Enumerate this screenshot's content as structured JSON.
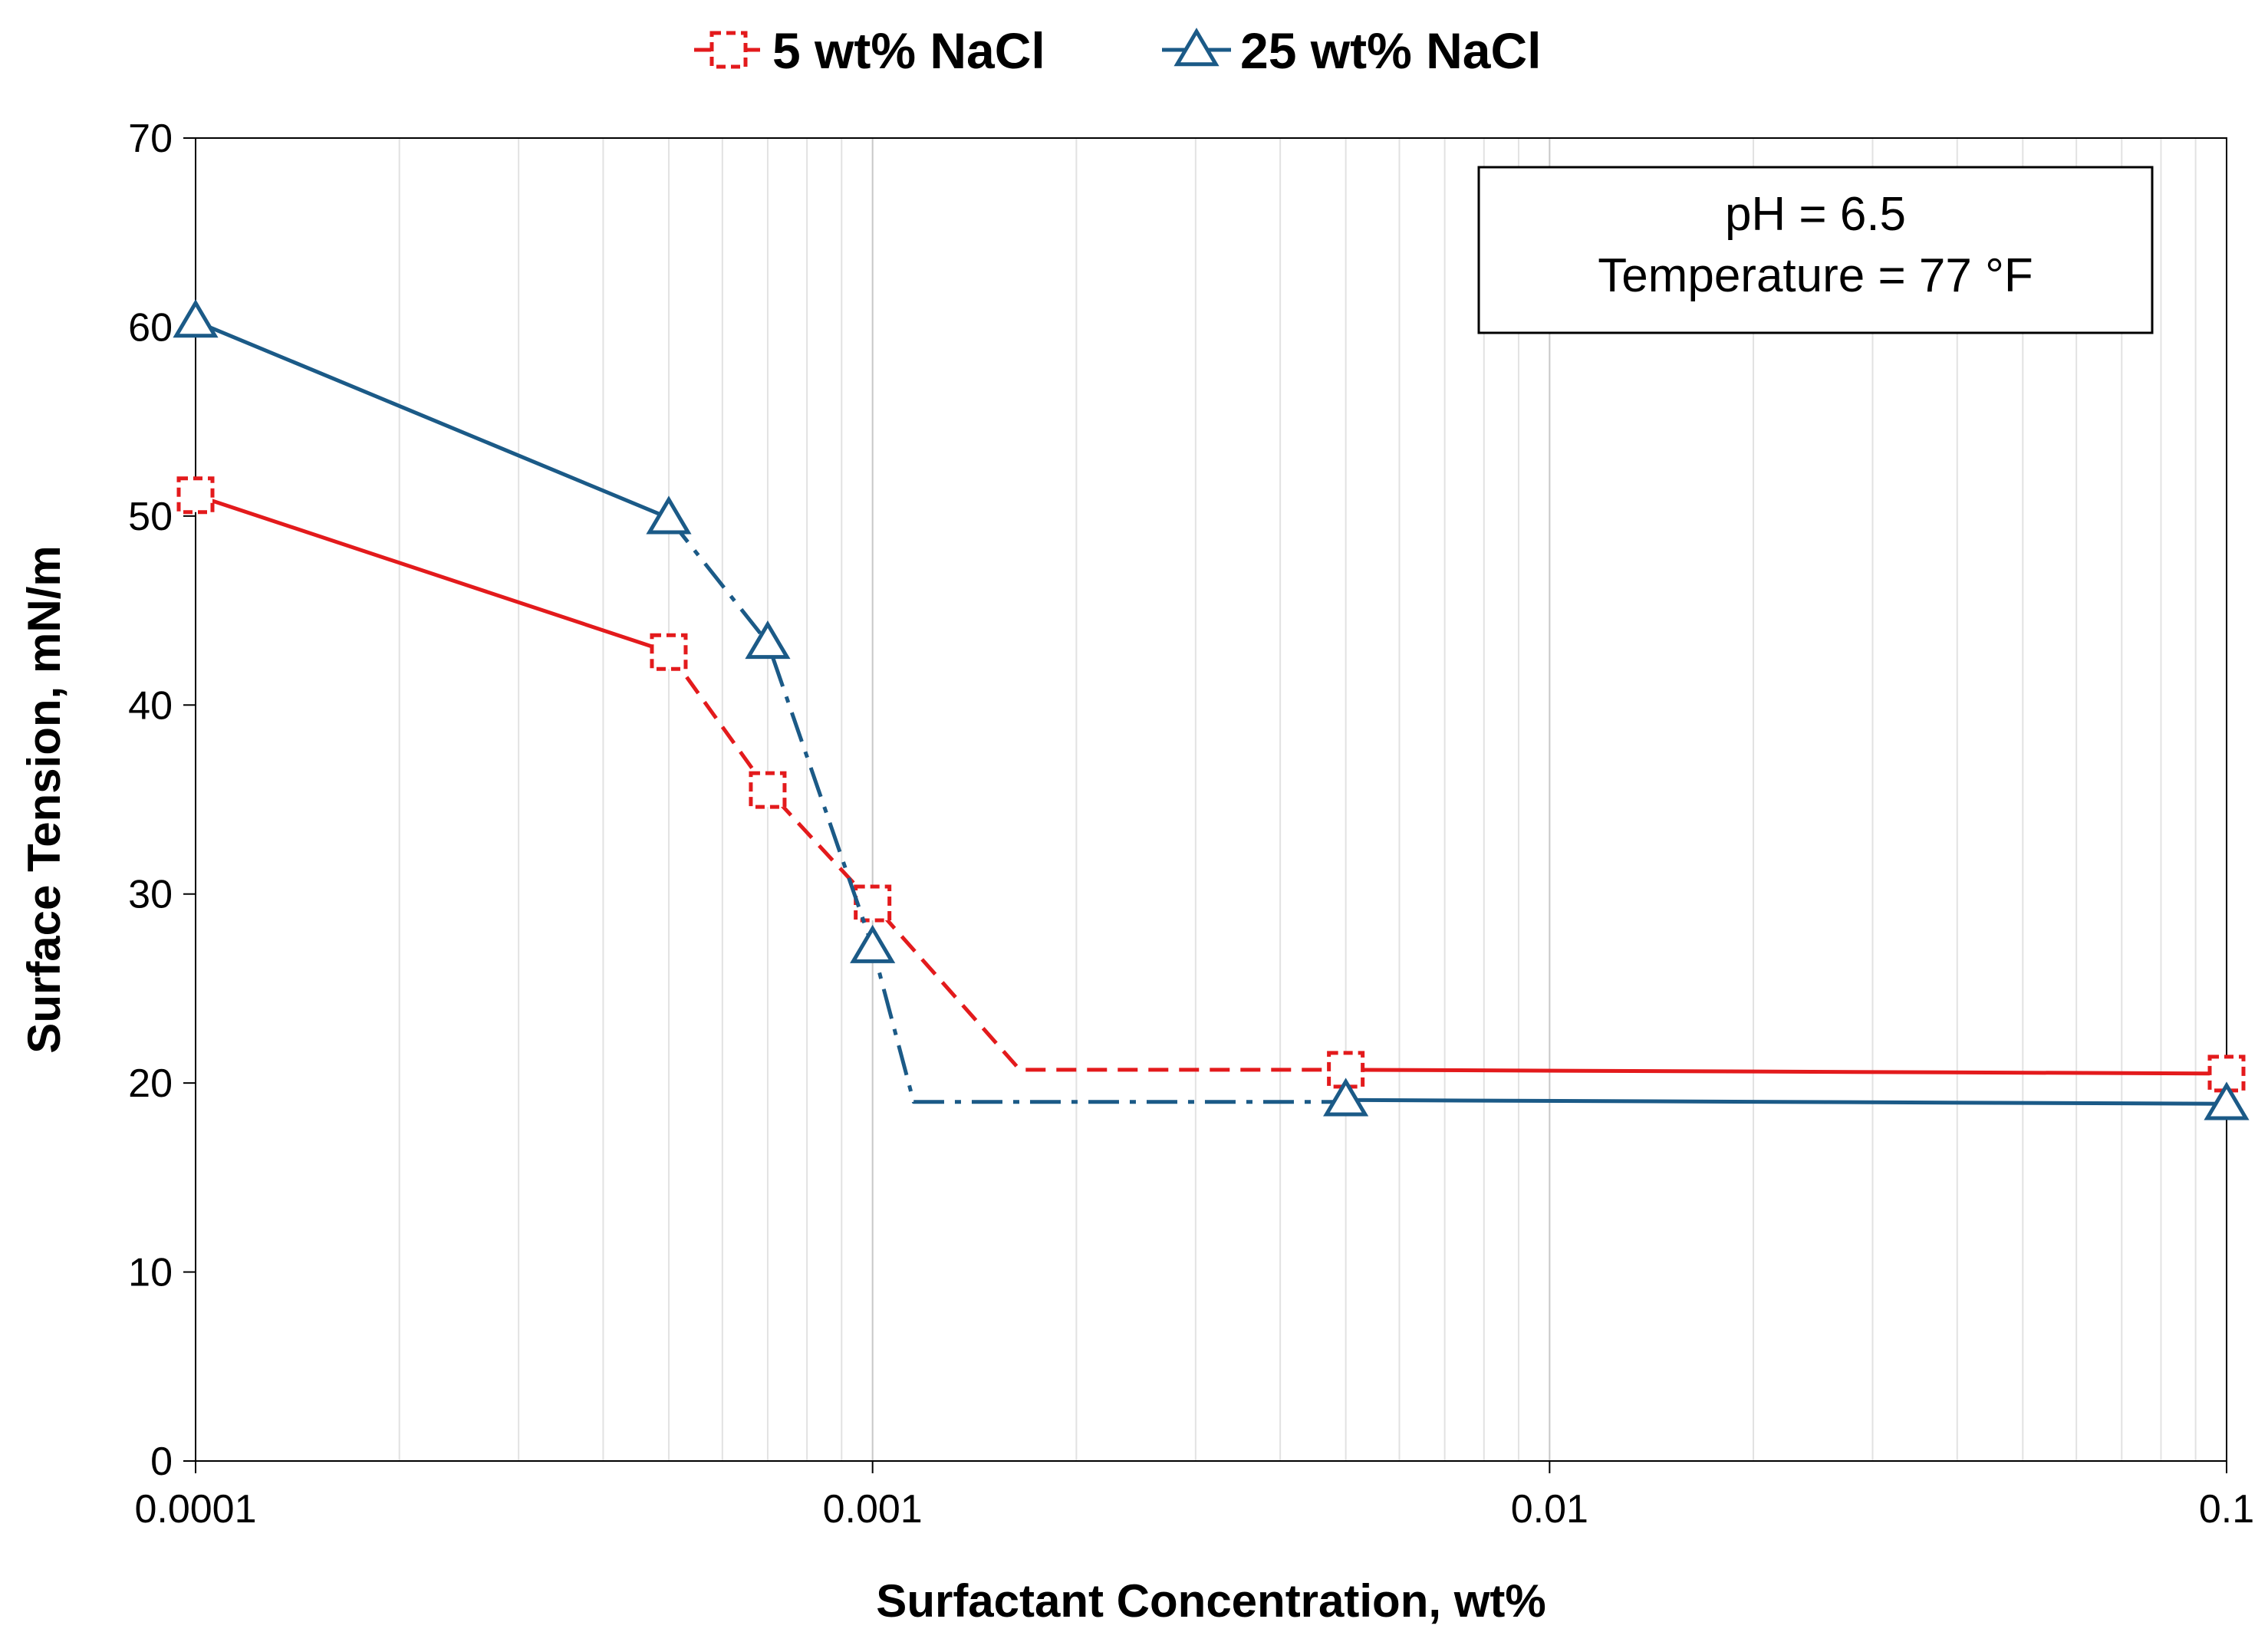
{
  "chart_data": {
    "type": "line",
    "title": "",
    "xlabel": "Surfactant Concentration, wt%",
    "ylabel": "Surface Tension, mN/m",
    "xscale": "log",
    "xlim": [
      0.0001,
      0.1
    ],
    "ylim": [
      0,
      70
    ],
    "xticks": [
      0.0001,
      0.001,
      0.01,
      0.1
    ],
    "xtick_labels": [
      "0.0001",
      "0.001",
      "0.01",
      "0.1"
    ],
    "yticks": [
      0,
      10,
      20,
      30,
      40,
      50,
      60,
      70
    ],
    "ytick_labels": [
      "0",
      "10",
      "20",
      "30",
      "40",
      "50",
      "60",
      "70"
    ],
    "grid": "vertical minor and major lines",
    "legend_position": "top-center",
    "series": [
      {
        "name": "5 wt% NaCl",
        "color": "#e31a1c",
        "marker": "square",
        "x": [
          0.0001,
          0.0005,
          0.0007,
          0.001,
          0.005,
          0.1
        ],
        "y": [
          51.1,
          42.8,
          35.5,
          29.5,
          20.7,
          20.5
        ],
        "segments": [
          {
            "style": "solid",
            "x": [
              0.0001,
              0.0005
            ],
            "y": [
              51.1,
              42.8
            ]
          },
          {
            "style": "dashed",
            "x": [
              0.0005,
              0.0007,
              0.001,
              0.00165,
              0.005
            ],
            "y": [
              42.8,
              35.5,
              29.5,
              20.7,
              20.7
            ]
          },
          {
            "style": "solid",
            "x": [
              0.005,
              0.1
            ],
            "y": [
              20.7,
              20.5
            ]
          }
        ]
      },
      {
        "name": "25 wt% NaCl",
        "color": "#1b5a87",
        "marker": "triangle",
        "x": [
          0.0001,
          0.0005,
          0.0007,
          0.001,
          0.005,
          0.1
        ],
        "y": [
          60.3,
          49.9,
          43.3,
          27.2,
          19.1,
          18.9
        ],
        "segments": [
          {
            "style": "solid",
            "x": [
              0.0001,
              0.0005
            ],
            "y": [
              60.3,
              49.9
            ]
          },
          {
            "style": "dashdot",
            "x": [
              0.0005,
              0.0007,
              0.001,
              0.00115,
              0.005
            ],
            "y": [
              49.9,
              43.3,
              27.2,
              19.0,
              19.0
            ]
          },
          {
            "style": "solid",
            "x": [
              0.005,
              0.1
            ],
            "y": [
              19.1,
              18.9
            ]
          }
        ]
      }
    ],
    "annotation": {
      "lines": [
        "pH = 6.5",
        "Temperature  = 77 °F"
      ]
    }
  }
}
